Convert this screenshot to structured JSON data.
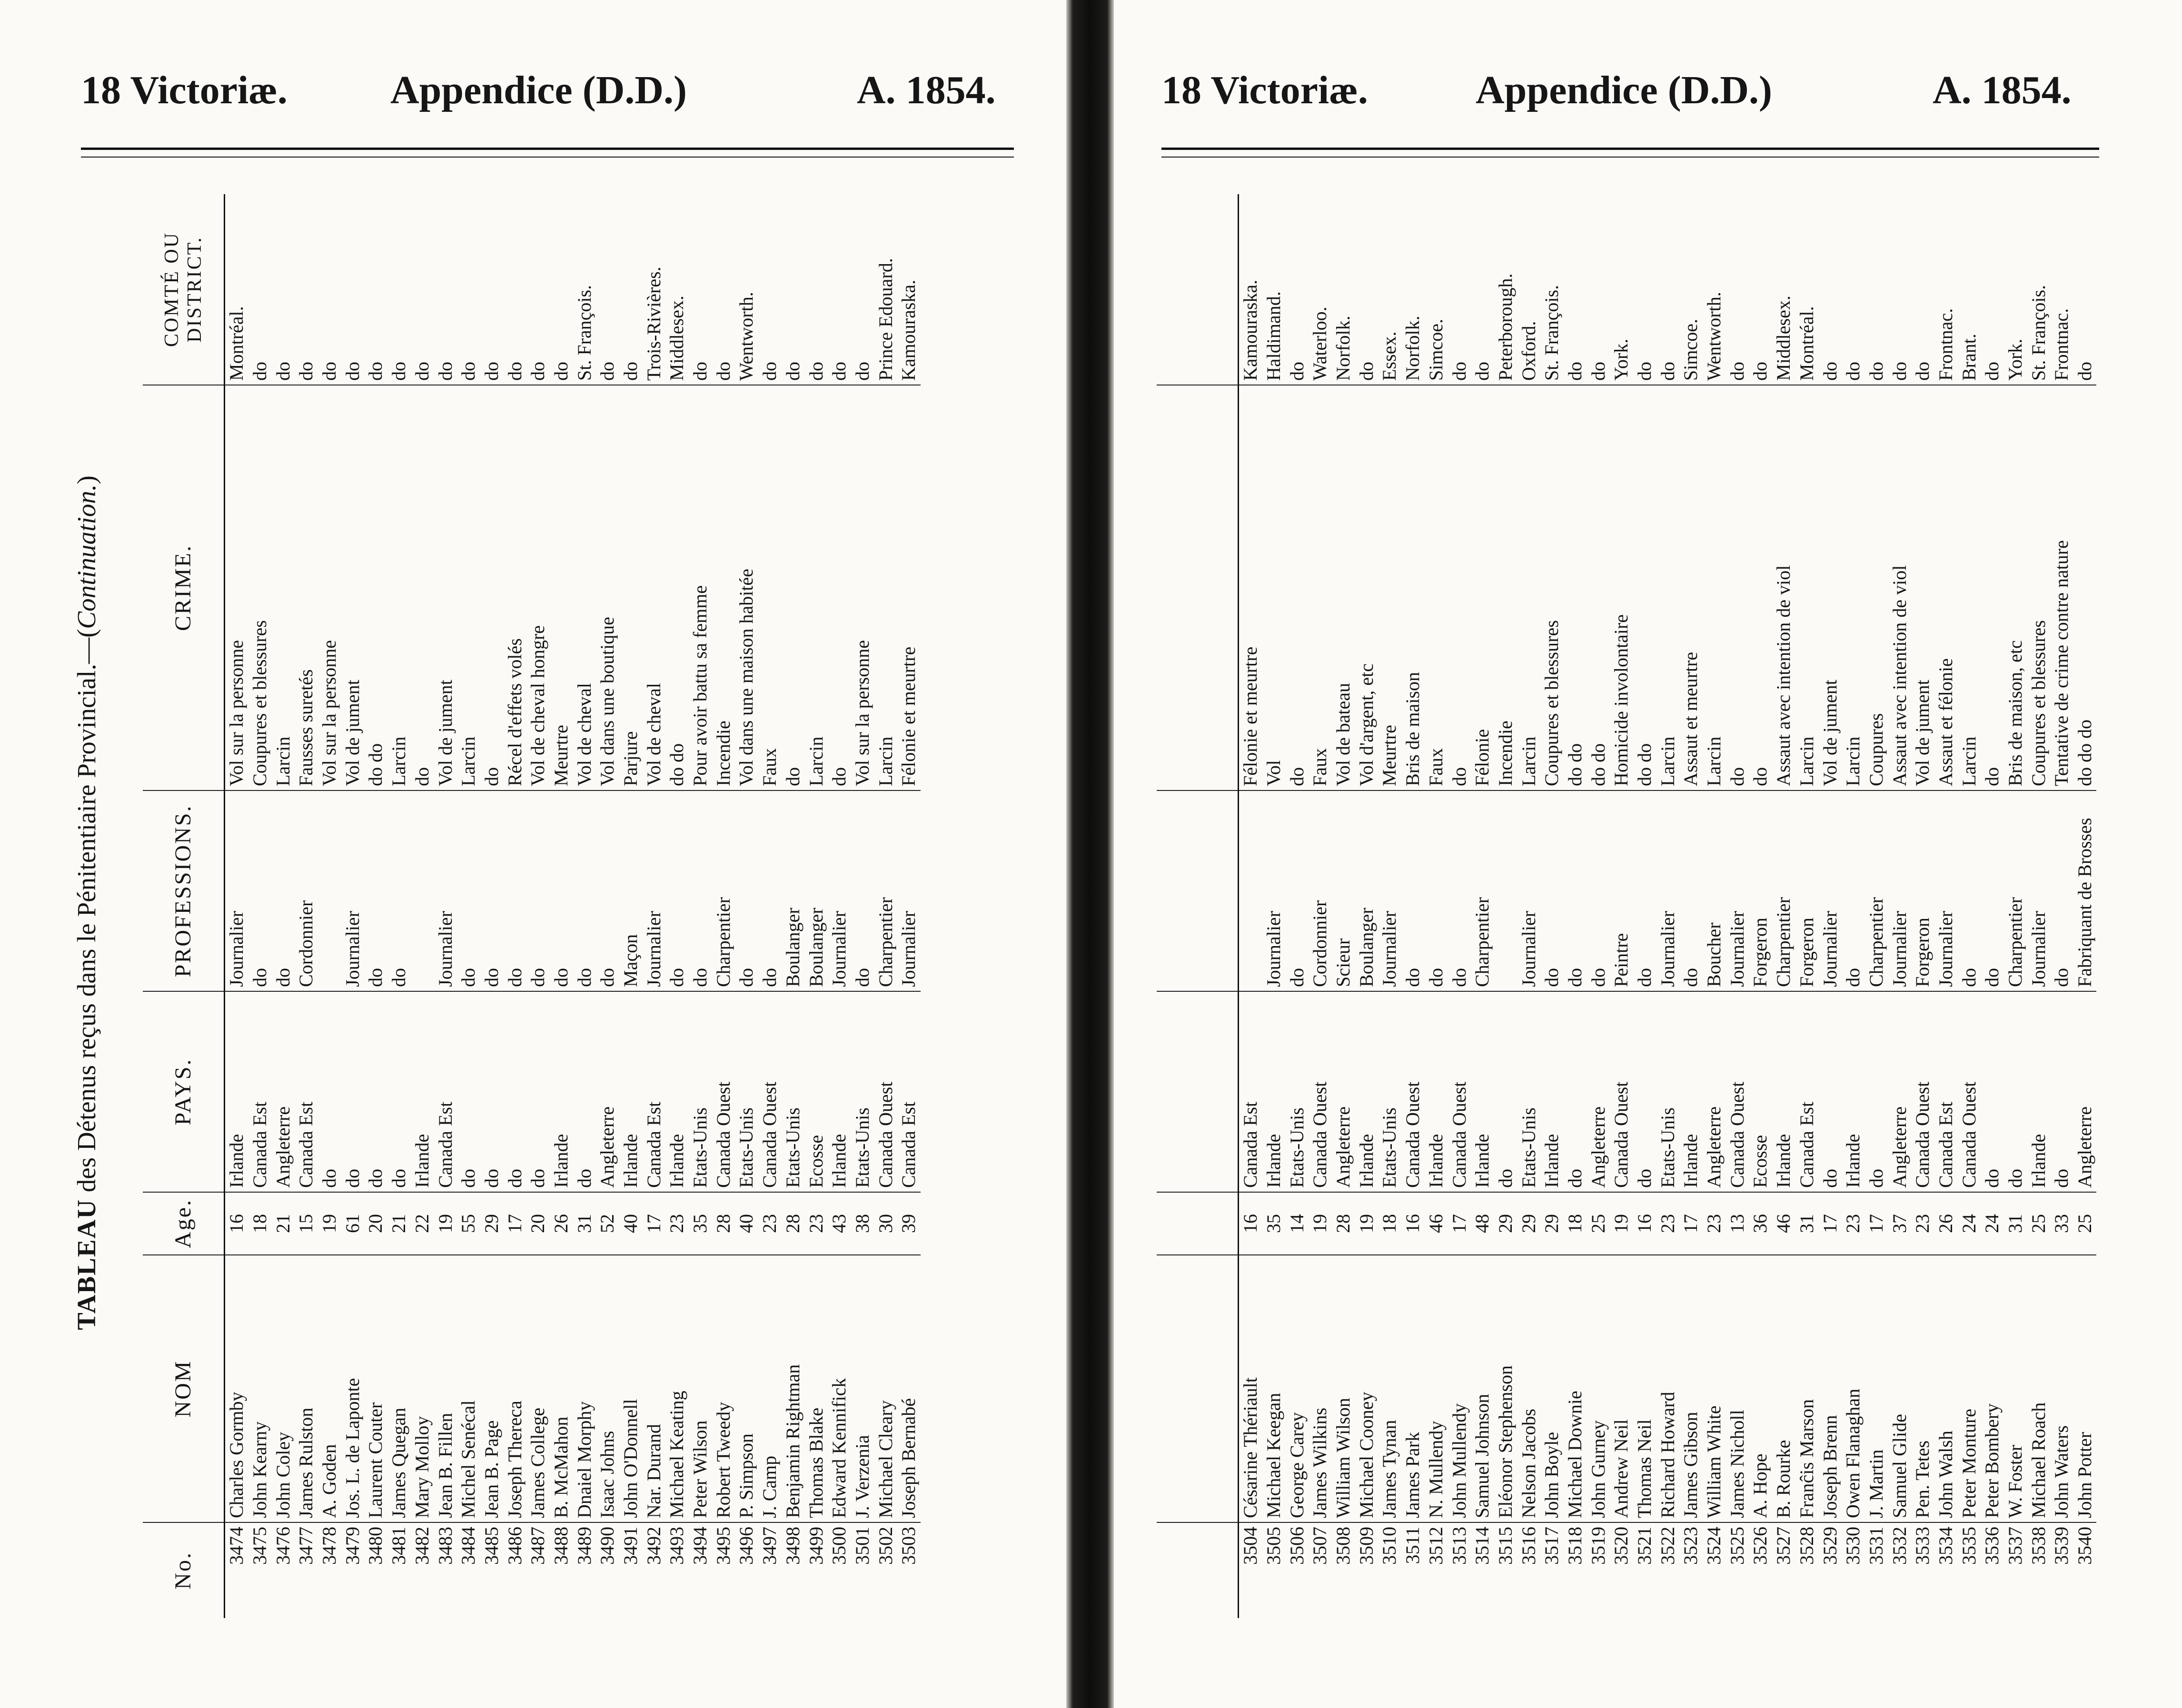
{
  "left_page": {
    "header": {
      "left": "18 Victoriæ.",
      "center": "Appendice (D.D.)",
      "right": "A. 1854."
    },
    "table_title_main": "TABLEAU",
    "table_title_rest": " des Détenus reçus dans le Pénitentiaire Provincial.—(",
    "table_title_cont": "Continuation.",
    "table_title_end": ")",
    "columns": {
      "no": "No.",
      "nom": "NOM",
      "age": "Age.",
      "pays": "PAYS.",
      "profession": "PROFESSIONS.",
      "crime": "CRIME.",
      "district": "COMTÉ OU DISTRICT."
    },
    "rows": [
      {
        "no": "3474",
        "nom": "Charles Gormby",
        "age": "16",
        "pays": "Irlande",
        "profession": "Journalier",
        "crime": "Vol sur la personne",
        "district": "Montréal."
      },
      {
        "no": "3475",
        "nom": "John Kearny",
        "age": "18",
        "pays": "Canada Est",
        "profession": "do",
        "crime": "Coupures et blessures",
        "district": "do"
      },
      {
        "no": "3476",
        "nom": "John Coley",
        "age": "21",
        "pays": "Angleterre",
        "profession": "do",
        "crime": "Larcin",
        "district": "do"
      },
      {
        "no": "3477",
        "nom": "James Rulston",
        "age": "15",
        "pays": "Canada Est",
        "profession": "Cordonnier",
        "crime": "Fausses suretés",
        "district": "do"
      },
      {
        "no": "3478",
        "nom": "A. Goden",
        "age": "19",
        "pays": "do",
        "profession": "",
        "crime": "Vol sur la personne",
        "district": "do"
      },
      {
        "no": "3479",
        "nom": "Jos. L. de Laponte",
        "age": "61",
        "pays": "do",
        "profession": "Journalier",
        "crime": "Vol de jument",
        "district": "do"
      },
      {
        "no": "3480",
        "nom": "Laurent Couter",
        "age": "20",
        "pays": "do",
        "profession": "do",
        "crime": "do do",
        "district": "do"
      },
      {
        "no": "3481",
        "nom": "James Quegan",
        "age": "21",
        "pays": "do",
        "profession": "do",
        "crime": "Larcin",
        "district": "do"
      },
      {
        "no": "3482",
        "nom": "Mary Molloy",
        "age": "22",
        "pays": "Irlande",
        "profession": "",
        "crime": "do",
        "district": "do"
      },
      {
        "no": "3483",
        "nom": "Jean B. Fillen",
        "age": "19",
        "pays": "Canada Est",
        "profession": "Journalier",
        "crime": "Vol de jument",
        "district": "do"
      },
      {
        "no": "3484",
        "nom": "Michel Senécal",
        "age": "55",
        "pays": "do",
        "profession": "do",
        "crime": "Larcin",
        "district": "do"
      },
      {
        "no": "3485",
        "nom": "Jean B. Page",
        "age": "29",
        "pays": "do",
        "profession": "do",
        "crime": "do",
        "district": "do"
      },
      {
        "no": "3486",
        "nom": "Joseph Thereca",
        "age": "17",
        "pays": "do",
        "profession": "do",
        "crime": "Récel d'effets volés",
        "district": "do"
      },
      {
        "no": "3487",
        "nom": "James College",
        "age": "20",
        "pays": "do",
        "profession": "do",
        "crime": "Vol de cheval hongre",
        "district": "do"
      },
      {
        "no": "3488",
        "nom": "B. McMahon",
        "age": "26",
        "pays": "Irlande",
        "profession": "do",
        "crime": "Meurtre",
        "district": "do"
      },
      {
        "no": "3489",
        "nom": "Dnaiel Morphy",
        "age": "31",
        "pays": "do",
        "profession": "do",
        "crime": "Vol de cheval",
        "district": "St. François."
      },
      {
        "no": "3490",
        "nom": "Isaac Johns",
        "age": "52",
        "pays": "Angleterre",
        "profession": "do",
        "crime": "Vol dans une boutique",
        "district": "do"
      },
      {
        "no": "3491",
        "nom": "John O'Donnell",
        "age": "40",
        "pays": "Irlande",
        "profession": "Maçon",
        "crime": "Parjure",
        "district": "do"
      },
      {
        "no": "3492",
        "nom": "Nar. Durand",
        "age": "17",
        "pays": "Canada Est",
        "profession": "Journalier",
        "crime": "Vol de cheval",
        "district": "Trois-Rivières."
      },
      {
        "no": "3493",
        "nom": "Michael Keating",
        "age": "23",
        "pays": "Irlande",
        "profession": "do",
        "crime": "do do",
        "district": "Middlesex."
      },
      {
        "no": "3494",
        "nom": "Peter Wilson",
        "age": "35",
        "pays": "Etats-Unis",
        "profession": "do",
        "crime": "Pour avoir battu sa femme",
        "district": "do"
      },
      {
        "no": "3495",
        "nom": "Robert Tweedy",
        "age": "28",
        "pays": "Canada Ouest",
        "profession": "Charpentier",
        "crime": "Incendie",
        "district": "do"
      },
      {
        "no": "3496",
        "nom": "P. Simpson",
        "age": "40",
        "pays": "Etats-Unis",
        "profession": "do",
        "crime": "Vol dans une maison habitée",
        "district": "Wentworth."
      },
      {
        "no": "3497",
        "nom": "J. Camp",
        "age": "23",
        "pays": "Canada Ouest",
        "profession": "do",
        "crime": "Faux",
        "district": "do"
      },
      {
        "no": "3498",
        "nom": "Benjamin Rightman",
        "age": "28",
        "pays": "Etats-Unis",
        "profession": "Boulanger",
        "crime": "do",
        "district": "do"
      },
      {
        "no": "3499",
        "nom": "Thomas Blake",
        "age": "23",
        "pays": "Ecosse",
        "profession": "Boulanger",
        "crime": "Larcin",
        "district": "do"
      },
      {
        "no": "3500",
        "nom": "Edward Kennifick",
        "age": "43",
        "pays": "Irlande",
        "profession": "Journalier",
        "crime": "do",
        "district": "do"
      },
      {
        "no": "3501",
        "nom": "J. Verzenia",
        "age": "38",
        "pays": "Etats-Unis",
        "profession": "do",
        "crime": "Vol sur la personne",
        "district": "do"
      },
      {
        "no": "3502",
        "nom": "Michael Cleary",
        "age": "30",
        "pays": "Canada Ouest",
        "profession": "Charpentier",
        "crime": "Larcin",
        "district": "Prince Edouard."
      },
      {
        "no": "3503",
        "nom": "Joseph Bernabé",
        "age": "39",
        "pays": "Canada Est",
        "profession": "Journalier",
        "crime": "Félonie et meurtre",
        "district": "Kamouraska."
      }
    ]
  },
  "right_page": {
    "header": {
      "left": "18 Victoriæ.",
      "center": "Appendice (D.D.)",
      "right": "A. 1854."
    },
    "rows": [
      {
        "no": "3504",
        "nom": "Césarine Thériault",
        "age": "16",
        "pays": "Canada Est",
        "profession": "",
        "crime": "Félonie et meurtre",
        "district": "Kamouraska."
      },
      {
        "no": "3505",
        "nom": "Michael Keegan",
        "age": "35",
        "pays": "Irlande",
        "profession": "Journalier",
        "crime": "Vol",
        "district": "Haldimand."
      },
      {
        "no": "3506",
        "nom": "George Carey",
        "age": "14",
        "pays": "Etats-Unis",
        "profession": "do",
        "crime": "do",
        "district": "do"
      },
      {
        "no": "3507",
        "nom": "James Wilkins",
        "age": "19",
        "pays": "Canada Ouest",
        "profession": "Cordonnier",
        "crime": "Faux",
        "district": "Waterloo."
      },
      {
        "no": "3508",
        "nom": "William Wilson",
        "age": "28",
        "pays": "Angleterre",
        "profession": "Scieur",
        "crime": "Vol de bateau",
        "district": "Norfolk."
      },
      {
        "no": "3509",
        "nom": "Michael Cooney",
        "age": "19",
        "pays": "Irlande",
        "profession": "Boulanger",
        "crime": "Vol d'argent, etc",
        "district": "do"
      },
      {
        "no": "3510",
        "nom": "James Tynan",
        "age": "18",
        "pays": "Etats-Unis",
        "profession": "Journalier",
        "crime": "Meurtre",
        "district": "Essex."
      },
      {
        "no": "3511",
        "nom": "James Park",
        "age": "16",
        "pays": "Canada Ouest",
        "profession": "do",
        "crime": "Bris de maison",
        "district": "Norfolk."
      },
      {
        "no": "3512",
        "nom": "N. Mullendy",
        "age": "46",
        "pays": "Irlande",
        "profession": "do",
        "crime": "Faux",
        "district": "Simcoe."
      },
      {
        "no": "3513",
        "nom": "John Mullendy",
        "age": "17",
        "pays": "Canada Ouest",
        "profession": "do",
        "crime": "do",
        "district": "do"
      },
      {
        "no": "3514",
        "nom": "Samuel Johnson",
        "age": "48",
        "pays": "Irlande",
        "profession": "Charpentier",
        "crime": "Félonie",
        "district": "do"
      },
      {
        "no": "3515",
        "nom": "Eléonor Stephenson",
        "age": "29",
        "pays": "do",
        "profession": "",
        "crime": "Incendie",
        "district": "Peterborough."
      },
      {
        "no": "3516",
        "nom": "Nelson Jacobs",
        "age": "29",
        "pays": "Etats-Unis",
        "profession": "Journalier",
        "crime": "Larcin",
        "district": "Oxford."
      },
      {
        "no": "3517",
        "nom": "John Boyle",
        "age": "29",
        "pays": "Irlande",
        "profession": "do",
        "crime": "Coupures et blessures",
        "district": "St. François."
      },
      {
        "no": "3518",
        "nom": "Michael Downie",
        "age": "18",
        "pays": "do",
        "profession": "do",
        "crime": "do do",
        "district": "do"
      },
      {
        "no": "3519",
        "nom": "John Gurney",
        "age": "25",
        "pays": "Angleterre",
        "profession": "do",
        "crime": "do do",
        "district": "do"
      },
      {
        "no": "3520",
        "nom": "Andrew Neil",
        "age": "19",
        "pays": "Canada Ouest",
        "profession": "Peintre",
        "crime": "Homicide involontaire",
        "district": "York."
      },
      {
        "no": "3521",
        "nom": "Thomas Neil",
        "age": "16",
        "pays": "do",
        "profession": "do",
        "crime": "do do",
        "district": "do"
      },
      {
        "no": "3522",
        "nom": "Richard Howard",
        "age": "23",
        "pays": "Etats-Unis",
        "profession": "Journalier",
        "crime": "Larcin",
        "district": "do"
      },
      {
        "no": "3523",
        "nom": "James Gibson",
        "age": "17",
        "pays": "Irlande",
        "profession": "do",
        "crime": "Assaut et meurtre",
        "district": "Simcoe."
      },
      {
        "no": "3524",
        "nom": "William White",
        "age": "23",
        "pays": "Angleterre",
        "profession": "Boucher",
        "crime": "Larcin",
        "district": "Wentworth."
      },
      {
        "no": "3525",
        "nom": "James Nicholl",
        "age": "13",
        "pays": "Canada Ouest",
        "profession": "Journalier",
        "crime": "do",
        "district": "do"
      },
      {
        "no": "3526",
        "nom": "A. Hope",
        "age": "36",
        "pays": "Ecosse",
        "profession": "Forgeron",
        "crime": "do",
        "district": "do"
      },
      {
        "no": "3527",
        "nom": "B. Rourke",
        "age": "46",
        "pays": "Irlande",
        "profession": "Charpentier",
        "crime": "Assaut avec intention de viol",
        "district": "Middlesex."
      },
      {
        "no": "3528",
        "nom": "Franĉis Marson",
        "age": "31",
        "pays": "Canada Est",
        "profession": "Forgeron",
        "crime": "Larcin",
        "district": "Montréal."
      },
      {
        "no": "3529",
        "nom": "Joseph Brenn",
        "age": "17",
        "pays": "do",
        "profession": "Journalier",
        "crime": "Vol de jument",
        "district": "do"
      },
      {
        "no": "3530",
        "nom": "Owen Flanaghan",
        "age": "23",
        "pays": "Irlande",
        "profession": "do",
        "crime": "Larcin",
        "district": "do"
      },
      {
        "no": "3531",
        "nom": "J. Martin",
        "age": "17",
        "pays": "do",
        "profession": "Charpentier",
        "crime": "Coupures",
        "district": "do"
      },
      {
        "no": "3532",
        "nom": "Samuel Glide",
        "age": "37",
        "pays": "Angleterre",
        "profession": "Journalier",
        "crime": "Assaut avec intention de viol",
        "district": "do"
      },
      {
        "no": "3533",
        "nom": "Pen. Tetes",
        "age": "23",
        "pays": "Canada Ouest",
        "profession": "Forgeron",
        "crime": "Vol de jument",
        "district": "do"
      },
      {
        "no": "3534",
        "nom": "John Walsh",
        "age": "26",
        "pays": "Canada Est",
        "profession": "Journalier",
        "crime": "Assaut et félonie",
        "district": "Frontnac."
      },
      {
        "no": "3535",
        "nom": "Peter Monture",
        "age": "24",
        "pays": "Canada Ouest",
        "profession": "do",
        "crime": "Larcin",
        "district": "Brant."
      },
      {
        "no": "3536",
        "nom": "Peter Bombery",
        "age": "24",
        "pays": "do",
        "profession": "do",
        "crime": "do",
        "district": "do"
      },
      {
        "no": "3537",
        "nom": "W. Foster",
        "age": "31",
        "pays": "do",
        "profession": "Charpentier",
        "crime": "Bris de maison, etc",
        "district": "York."
      },
      {
        "no": "3538",
        "nom": "Michael Roach",
        "age": "25",
        "pays": "Irlande",
        "profession": "Journalier",
        "crime": "Coupures et blessures",
        "district": "St. François."
      },
      {
        "no": "3539",
        "nom": "John Waters",
        "age": "33",
        "pays": "do",
        "profession": "do",
        "crime": "Tentative de crime contre nature",
        "district": "Frontnac."
      },
      {
        "no": "3540",
        "nom": "John Potter",
        "age": "25",
        "pays": "Angleterre",
        "profession": "Fabriquant de Brosses",
        "crime": "do do do",
        "district": "do"
      }
    ]
  }
}
